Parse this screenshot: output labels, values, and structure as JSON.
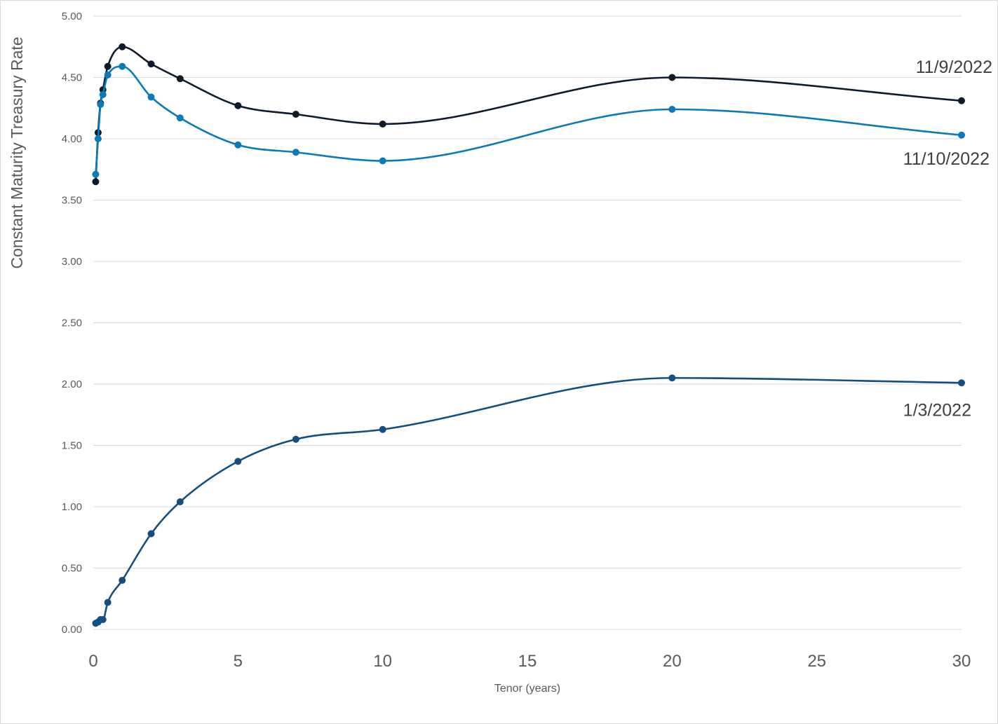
{
  "chart_data": {
    "type": "line",
    "title": "",
    "xlabel": "Tenor (years)",
    "ylabel": "Constant Maturity Treasury Rate",
    "xlim": [
      0,
      30
    ],
    "ylim": [
      0,
      5
    ],
    "x_ticks": [
      "0",
      "5",
      "10",
      "15",
      "20",
      "25",
      "30"
    ],
    "y_ticks": [
      "0.00",
      "0.50",
      "1.00",
      "1.50",
      "2.00",
      "2.50",
      "3.00",
      "3.50",
      "4.00",
      "4.50",
      "5.00"
    ],
    "grid": true,
    "legend": "none",
    "series": [
      {
        "name": "11/9/2022",
        "color": "#0d1b2a",
        "x": [
          0.083,
          0.167,
          0.25,
          0.333,
          0.5,
          1,
          2,
          3,
          5,
          7,
          10,
          20,
          30
        ],
        "y": [
          3.65,
          4.05,
          4.29,
          4.4,
          4.59,
          4.75,
          4.61,
          4.49,
          4.27,
          4.2,
          4.12,
          4.5,
          4.31
        ]
      },
      {
        "name": "11/10/2022",
        "color": "#0a7bb8",
        "x": [
          0.083,
          0.167,
          0.25,
          0.333,
          0.5,
          1,
          2,
          3,
          5,
          7,
          10,
          20,
          30
        ],
        "y": [
          3.71,
          4.0,
          4.28,
          4.36,
          4.52,
          4.59,
          4.34,
          4.17,
          3.95,
          3.89,
          3.82,
          4.24,
          4.03
        ]
      },
      {
        "name": "1/3/2022",
        "color": "#124f80",
        "x": [
          0.083,
          0.167,
          0.25,
          0.333,
          0.5,
          1,
          2,
          3,
          5,
          7,
          10,
          20,
          30
        ],
        "y": [
          0.05,
          0.06,
          0.08,
          0.08,
          0.22,
          0.4,
          0.78,
          1.04,
          1.37,
          1.55,
          1.63,
          2.05,
          2.01
        ]
      }
    ]
  }
}
